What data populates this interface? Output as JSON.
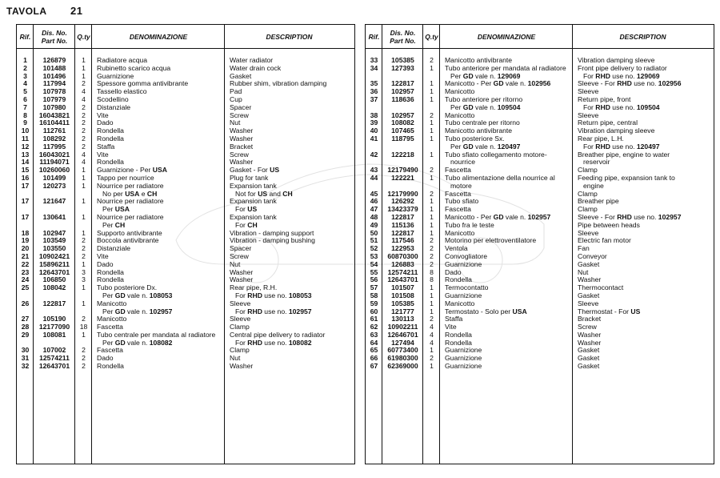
{
  "title": {
    "label": "TAVOLA",
    "number": "21"
  },
  "headers": {
    "rif": "Rif.",
    "dis1": "Dis. No.",
    "dis2": "Part No.",
    "qty": "Q.ty",
    "denominazione": "DENOMINAZIONE",
    "description": "DESCRIPTION"
  },
  "left_rows": [
    {
      "rif": "1",
      "part": "126879",
      "qty": "1",
      "it": [
        "Radiatore acqua"
      ],
      "en": [
        "Water radiator"
      ]
    },
    {
      "rif": "2",
      "part": "101488",
      "qty": "1",
      "it": [
        "Rubinetto scarico acqua"
      ],
      "en": [
        "Water drain cock"
      ]
    },
    {
      "rif": "3",
      "part": "101496",
      "qty": "1",
      "it": [
        "Guarnizione"
      ],
      "en": [
        "Gasket"
      ]
    },
    {
      "rif": "4",
      "part": "117994",
      "qty": "2",
      "it": [
        "Spessore gomma antivibrante"
      ],
      "en": [
        "Rubber shim, vibration damping"
      ]
    },
    {
      "rif": "5",
      "part": "107978",
      "qty": "4",
      "it": [
        "Tassello elastico"
      ],
      "en": [
        "Pad"
      ]
    },
    {
      "rif": "6",
      "part": "107979",
      "qty": "4",
      "it": [
        "Scodellino"
      ],
      "en": [
        "Cup"
      ]
    },
    {
      "rif": "7",
      "part": "107980",
      "qty": "2",
      "it": [
        "Distanziale"
      ],
      "en": [
        "Spacer"
      ]
    },
    {
      "rif": "8",
      "part": "16043821",
      "qty": "2",
      "it": [
        "Vite"
      ],
      "en": [
        "Screw"
      ]
    },
    {
      "rif": "9",
      "part": "16104411",
      "qty": "2",
      "it": [
        "Dado"
      ],
      "en": [
        "Nut"
      ]
    },
    {
      "rif": "10",
      "part": "112761",
      "qty": "2",
      "it": [
        "Rondella"
      ],
      "en": [
        "Washer"
      ]
    },
    {
      "rif": "11",
      "part": "108292",
      "qty": "2",
      "it": [
        "Rondella"
      ],
      "en": [
        "Washer"
      ]
    },
    {
      "rif": "12",
      "part": "117995",
      "qty": "2",
      "it": [
        "Staffa"
      ],
      "en": [
        "Bracket"
      ]
    },
    {
      "rif": "13",
      "part": "16043021",
      "qty": "4",
      "it": [
        "Vite"
      ],
      "en": [
        "Screw"
      ]
    },
    {
      "rif": "14",
      "part": "11194071",
      "qty": "4",
      "it": [
        "Rondella"
      ],
      "en": [
        "Washer"
      ]
    },
    {
      "rif": "15",
      "part": "10260060",
      "qty": "1",
      "it": [
        "Guarnizione - Per *USA*"
      ],
      "en": [
        "Gasket - For *US*"
      ]
    },
    {
      "rif": "16",
      "part": "101499",
      "qty": "1",
      "it": [
        "Tappo per nourrice"
      ],
      "en": [
        "Plug for tank"
      ]
    },
    {
      "rif": "17",
      "part": "120273",
      "qty": "1",
      "it": [
        "Nourrice per radiatore",
        "No per *USA* e *CH*"
      ],
      "en": [
        "Expansion tank",
        "Not for *US* and *CH*"
      ]
    },
    {
      "rif": "17",
      "part": "121647",
      "qty": "1",
      "it": [
        "Nourrice per radiatore",
        "Per *USA*"
      ],
      "en": [
        "Expansion tank",
        "For *US*"
      ]
    },
    {
      "rif": "17",
      "part": "130641",
      "qty": "1",
      "it": [
        "Nourrice per radiatore",
        "Per *CH*"
      ],
      "en": [
        "Expansion tank",
        "For *CH*"
      ]
    },
    {
      "rif": "18",
      "part": "102947",
      "qty": "1",
      "it": [
        "Supporto antivibrante"
      ],
      "en": [
        "Vibration - damping support"
      ]
    },
    {
      "rif": "19",
      "part": "103549",
      "qty": "2",
      "it": [
        "Boccola antivibrante"
      ],
      "en": [
        "Vibration - damping bushing"
      ]
    },
    {
      "rif": "20",
      "part": "103550",
      "qty": "2",
      "it": [
        "Distanziale"
      ],
      "en": [
        "Spacer"
      ]
    },
    {
      "rif": "21",
      "part": "10902421",
      "qty": "2",
      "it": [
        "Vite"
      ],
      "en": [
        "Screw"
      ]
    },
    {
      "rif": "22",
      "part": "15896211",
      "qty": "1",
      "it": [
        "Dado"
      ],
      "en": [
        "Nut"
      ]
    },
    {
      "rif": "23",
      "part": "12643701",
      "qty": "3",
      "it": [
        "Rondella"
      ],
      "en": [
        "Washer"
      ]
    },
    {
      "rif": "24",
      "part": "106850",
      "qty": "3",
      "it": [
        "Rondella"
      ],
      "en": [
        "Washer"
      ]
    },
    {
      "rif": "25",
      "part": "108042",
      "qty": "1",
      "it": [
        "Tubo posteriore Dx.",
        "Per *GD* vale n. *108053*"
      ],
      "en": [
        "Rear pipe, R.H.",
        "For *RHD* use no. *108053*"
      ]
    },
    {
      "rif": "26",
      "part": "122817",
      "qty": "1",
      "it": [
        "Manicotto",
        "Per *GD* vale n. *102957*"
      ],
      "en": [
        "Sleeve",
        "For *RHD* use no. *102957*"
      ]
    },
    {
      "rif": "27",
      "part": "105190",
      "qty": "2",
      "it": [
        "Manicotto"
      ],
      "en": [
        "Sleeve"
      ]
    },
    {
      "rif": "28",
      "part": "12177090",
      "qty": "18",
      "it": [
        "Fascetta"
      ],
      "en": [
        "Clamp"
      ]
    },
    {
      "rif": "29",
      "part": "108081",
      "qty": "1",
      "it": [
        "Tubo centrale per mandata al radiatore",
        "Per *GD* vale n. *108082*"
      ],
      "en": [
        "Central pipe delivery to radiator",
        "For *RHD* use no. *108082*"
      ]
    },
    {
      "rif": "30",
      "part": "107002",
      "qty": "2",
      "it": [
        "Fascetta"
      ],
      "en": [
        "Clamp"
      ]
    },
    {
      "rif": "31",
      "part": "12574211",
      "qty": "2",
      "it": [
        "Dado"
      ],
      "en": [
        "Nut"
      ]
    },
    {
      "rif": "32",
      "part": "12643701",
      "qty": "2",
      "it": [
        "Rondella"
      ],
      "en": [
        "Washer"
      ]
    }
  ],
  "right_rows": [
    {
      "rif": "33",
      "part": "105385",
      "qty": "2",
      "it": [
        "Manicotto antivibrante"
      ],
      "en": [
        "Vibration damping sleeve"
      ]
    },
    {
      "rif": "34",
      "part": "127393",
      "qty": "1",
      "it": [
        "Tubo anteriore per mandata al radiatore",
        "Per *GD* vale n. *129069*"
      ],
      "en": [
        "Front pipe delivery to radiator",
        "For *RHD* use no. *129069*"
      ]
    },
    {
      "rif": "35",
      "part": "122817",
      "qty": "1",
      "it": [
        "Manicotto - Per *GD* vale n. *102956*"
      ],
      "en": [
        "Sleeve - For *RHD* use no. *102956*"
      ]
    },
    {
      "rif": "36",
      "part": "102957",
      "qty": "1",
      "it": [
        "Manicotto"
      ],
      "en": [
        "Sleeve"
      ]
    },
    {
      "rif": "37",
      "part": "118636",
      "qty": "1",
      "it": [
        "Tubo anteriore per ritorno",
        "Per *GD* vale n. *109504*"
      ],
      "en": [
        "Return pipe, front",
        "For *RHD* use no. *109504*"
      ]
    },
    {
      "rif": "38",
      "part": "102957",
      "qty": "2",
      "it": [
        "Manicotto"
      ],
      "en": [
        "Sleeve"
      ]
    },
    {
      "rif": "39",
      "part": "108082",
      "qty": "1",
      "it": [
        "Tubo centrale per ritorno"
      ],
      "en": [
        "Return pipe, central"
      ]
    },
    {
      "rif": "40",
      "part": "107465",
      "qty": "1",
      "it": [
        "Manicotto antivibrante"
      ],
      "en": [
        "Vibration damping sleeve"
      ]
    },
    {
      "rif": "41",
      "part": "118795",
      "qty": "1",
      "it": [
        "Tubo posteriore Sx.",
        "Per *GD* vale n. *120497*"
      ],
      "en": [
        "Rear pipe, L.H.",
        "For *RHD* use no. *120497*"
      ]
    },
    {
      "rif": "42",
      "part": "122218",
      "qty": "1",
      "it": [
        "Tubo sfiato collegamento motore-",
        "nourrice"
      ],
      "en": [
        "Breather pipe, engine to water",
        "reservoir"
      ]
    },
    {
      "rif": "43",
      "part": "12179490",
      "qty": "2",
      "it": [
        "Fascetta"
      ],
      "en": [
        "Clamp"
      ]
    },
    {
      "rif": "44",
      "part": "122221",
      "qty": "1",
      "it": [
        "Tubo alimentazione della nourrice al",
        "motore"
      ],
      "en": [
        "Feeding pipe, expansion tank to",
        "engine"
      ]
    },
    {
      "rif": "45",
      "part": "12179990",
      "qty": "2",
      "it": [
        "Fascetta"
      ],
      "en": [
        "Clamp"
      ]
    },
    {
      "rif": "46",
      "part": "126292",
      "qty": "1",
      "it": [
        "Tubo sfiato"
      ],
      "en": [
        "Breather pipe"
      ]
    },
    {
      "rif": "47",
      "part": "13423379",
      "qty": "1",
      "it": [
        "Fascetta"
      ],
      "en": [
        "Clamp"
      ]
    },
    {
      "rif": "48",
      "part": "122817",
      "qty": "1",
      "it": [
        "Manicotto -  Per *GD* vale n. *102957*"
      ],
      "en": [
        "Sleeve - For *RHD* use no. *102957*"
      ]
    },
    {
      "rif": "49",
      "part": "115136",
      "qty": "1",
      "it": [
        "Tubo fra le teste"
      ],
      "en": [
        "Pipe between heads"
      ]
    },
    {
      "rif": "50",
      "part": "122817",
      "qty": "1",
      "it": [
        "Manicotto"
      ],
      "en": [
        "Sleeve"
      ]
    },
    {
      "rif": "51",
      "part": "117546",
      "qty": "2",
      "it": [
        "Motorino per elettroventilatore"
      ],
      "en": [
        "Electric fan motor"
      ]
    },
    {
      "rif": "52",
      "part": "122953",
      "qty": "2",
      "it": [
        "Ventola"
      ],
      "en": [
        "Fan"
      ]
    },
    {
      "rif": "53",
      "part": "60870300",
      "qty": "2",
      "it": [
        "Convogliatore"
      ],
      "en": [
        "Conveyor"
      ]
    },
    {
      "rif": "54",
      "part": "126883",
      "qty": "2",
      "it": [
        "Guarnizione"
      ],
      "en": [
        "Gasket"
      ]
    },
    {
      "rif": "55",
      "part": "12574211",
      "qty": "8",
      "it": [
        "Dado"
      ],
      "en": [
        "Nut"
      ]
    },
    {
      "rif": "56",
      "part": "12643701",
      "qty": "8",
      "it": [
        "Rondella"
      ],
      "en": [
        "Washer"
      ]
    },
    {
      "rif": "57",
      "part": "101507",
      "qty": "1",
      "it": [
        "Termocontatto"
      ],
      "en": [
        "Thermocontact"
      ]
    },
    {
      "rif": "58",
      "part": "101508",
      "qty": "1",
      "it": [
        "Guarnizione"
      ],
      "en": [
        "Gasket"
      ]
    },
    {
      "rif": "59",
      "part": "105385",
      "qty": "1",
      "it": [
        "Manicotto"
      ],
      "en": [
        "Sleeve"
      ]
    },
    {
      "rif": "60",
      "part": "121777",
      "qty": "1",
      "it": [
        "Termostato - Solo per *USA*"
      ],
      "en": [
        "Thermostat - For *US*"
      ]
    },
    {
      "rif": "61",
      "part": "130113",
      "qty": "2",
      "it": [
        "Staffa"
      ],
      "en": [
        "Bracket"
      ]
    },
    {
      "rif": "62",
      "part": "10902211",
      "qty": "4",
      "it": [
        "Vite"
      ],
      "en": [
        "Screw"
      ]
    },
    {
      "rif": "63",
      "part": "12646701",
      "qty": "4",
      "it": [
        "Rondella"
      ],
      "en": [
        "Washer"
      ]
    },
    {
      "rif": "64",
      "part": "127494",
      "qty": "4",
      "it": [
        "Rondella"
      ],
      "en": [
        "Washer"
      ]
    },
    {
      "rif": "65",
      "part": "60773400",
      "qty": "1",
      "it": [
        "Guarnizione"
      ],
      "en": [
        "Gasket"
      ]
    },
    {
      "rif": "66",
      "part": "61980300",
      "qty": "2",
      "it": [
        "Guarnizione"
      ],
      "en": [
        "Gasket"
      ]
    },
    {
      "rif": "67",
      "part": "62369000",
      "qty": "1",
      "it": [
        "Guarnizione"
      ],
      "en": [
        "Gasket"
      ]
    }
  ]
}
